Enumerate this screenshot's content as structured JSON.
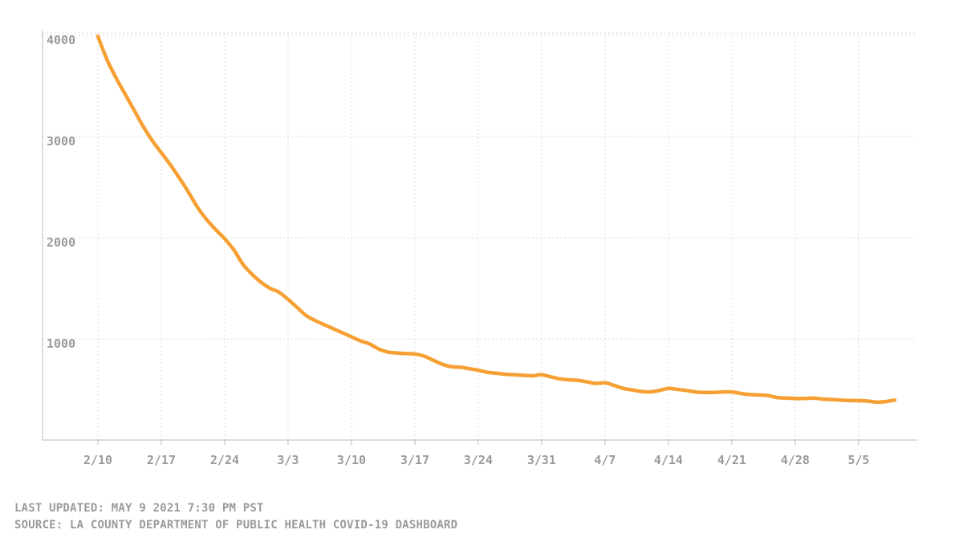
{
  "footer": {
    "updated": "LAST UPDATED: MAY 9 2021 7:30 PM PST",
    "source": "SOURCE: LA COUNTY DEPARTMENT OF PUBLIC HEALTH COVID-19 DASHBOARD"
  },
  "chart_data": {
    "type": "line",
    "title": "",
    "xlabel": "",
    "ylabel": "",
    "grid": true,
    "colors": {
      "line": "#f6a034",
      "grid": "#dddddd",
      "axis": "#bbbbbb",
      "text": "#9a9a9a"
    },
    "ylim": [
      0,
      4000
    ],
    "yticks": [
      1000,
      2000,
      3000,
      4000
    ],
    "xlim": [
      "2021-02-10",
      "2021-05-09"
    ],
    "xticks": [
      {
        "date": "2021-02-10",
        "label": "2/10"
      },
      {
        "date": "2021-02-17",
        "label": "2/17"
      },
      {
        "date": "2021-02-24",
        "label": "2/24"
      },
      {
        "date": "2021-03-03",
        "label": "3/3"
      },
      {
        "date": "2021-03-10",
        "label": "3/10"
      },
      {
        "date": "2021-03-17",
        "label": "3/17"
      },
      {
        "date": "2021-03-24",
        "label": "3/24"
      },
      {
        "date": "2021-03-31",
        "label": "3/31"
      },
      {
        "date": "2021-04-07",
        "label": "4/7"
      },
      {
        "date": "2021-04-14",
        "label": "4/14"
      },
      {
        "date": "2021-04-21",
        "label": "4/21"
      },
      {
        "date": "2021-04-28",
        "label": "4/28"
      },
      {
        "date": "2021-05-05",
        "label": "5/5"
      }
    ],
    "series": [
      {
        "x": [
          "2021-02-10",
          "2021-02-11",
          "2021-02-12",
          "2021-02-13",
          "2021-02-14",
          "2021-02-15",
          "2021-02-16",
          "2021-02-17",
          "2021-02-18",
          "2021-02-19",
          "2021-02-20",
          "2021-02-21",
          "2021-02-22",
          "2021-02-23",
          "2021-02-24",
          "2021-02-25",
          "2021-02-26",
          "2021-02-27",
          "2021-02-28",
          "2021-03-01",
          "2021-03-02",
          "2021-03-03",
          "2021-03-04",
          "2021-03-05",
          "2021-03-06",
          "2021-03-07",
          "2021-03-08",
          "2021-03-09",
          "2021-03-10",
          "2021-03-11",
          "2021-03-12",
          "2021-03-13",
          "2021-03-14",
          "2021-03-15",
          "2021-03-16",
          "2021-03-17",
          "2021-03-18",
          "2021-03-19",
          "2021-03-20",
          "2021-03-21",
          "2021-03-22",
          "2021-03-23",
          "2021-03-24",
          "2021-03-25",
          "2021-03-26",
          "2021-03-27",
          "2021-03-28",
          "2021-03-29",
          "2021-03-30",
          "2021-03-31",
          "2021-04-01",
          "2021-04-02",
          "2021-04-03",
          "2021-04-04",
          "2021-04-05",
          "2021-04-06",
          "2021-04-07",
          "2021-04-08",
          "2021-04-09",
          "2021-04-10",
          "2021-04-11",
          "2021-04-12",
          "2021-04-13",
          "2021-04-14",
          "2021-04-15",
          "2021-04-16",
          "2021-04-17",
          "2021-04-18",
          "2021-04-19",
          "2021-04-20",
          "2021-04-21",
          "2021-04-22",
          "2021-04-23",
          "2021-04-24",
          "2021-04-25",
          "2021-04-26",
          "2021-04-27",
          "2021-04-28",
          "2021-04-29",
          "2021-04-30",
          "2021-05-01",
          "2021-05-02",
          "2021-05-03",
          "2021-05-04",
          "2021-05-05",
          "2021-05-06",
          "2021-05-07",
          "2021-05-08",
          "2021-05-09"
        ],
        "values": [
          3990,
          3760,
          3580,
          3420,
          3260,
          3100,
          2960,
          2840,
          2720,
          2590,
          2450,
          2300,
          2180,
          2080,
          1990,
          1880,
          1740,
          1640,
          1560,
          1500,
          1460,
          1390,
          1310,
          1230,
          1180,
          1140,
          1100,
          1060,
          1020,
          980,
          950,
          900,
          870,
          860,
          855,
          850,
          830,
          790,
          750,
          725,
          720,
          705,
          690,
          670,
          660,
          650,
          645,
          640,
          635,
          645,
          625,
          605,
          595,
          590,
          575,
          560,
          565,
          540,
          510,
          495,
          480,
          475,
          490,
          510,
          500,
          490,
          475,
          470,
          470,
          475,
          475,
          460,
          450,
          445,
          440,
          420,
          415,
          410,
          410,
          415,
          405,
          400,
          395,
          390,
          390,
          385,
          375,
          380,
          395
        ]
      }
    ]
  }
}
